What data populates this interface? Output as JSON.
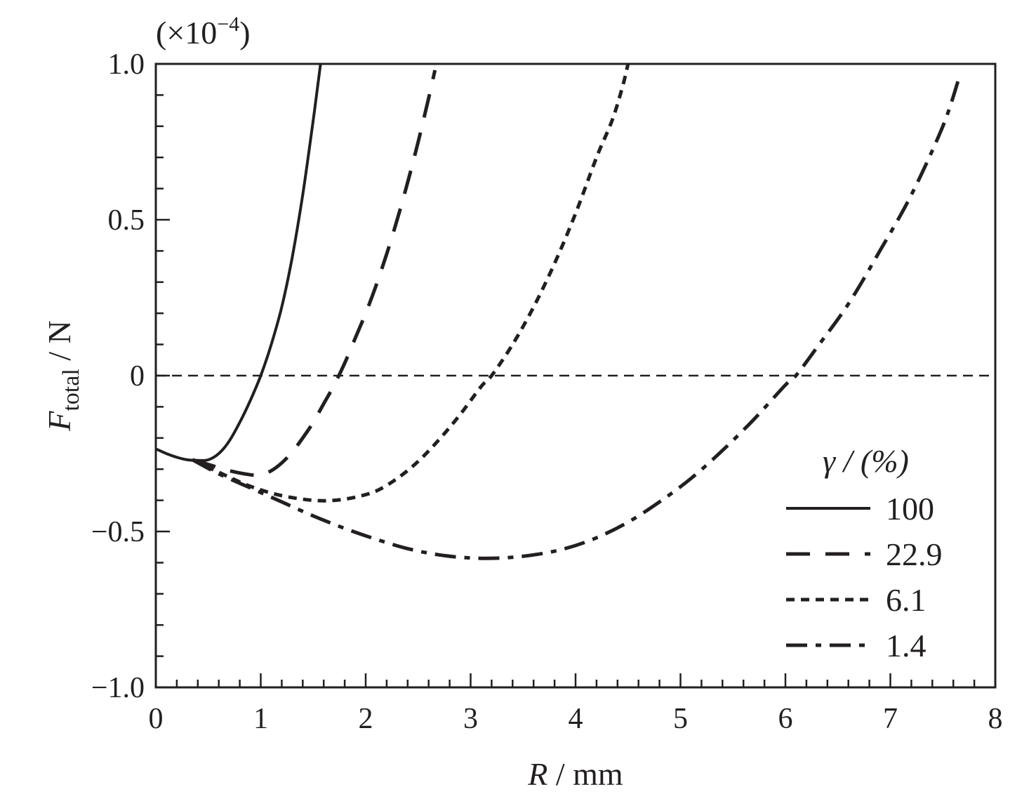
{
  "chart_data": {
    "type": "line",
    "scale_label": {
      "prefix": "(×10",
      "exponent": "−4",
      "suffix": ")"
    },
    "xlabel": {
      "symbol": "R",
      "unit": " / mm"
    },
    "ylabel": {
      "symbol": "F",
      "subscript": "total",
      "unit": " / N"
    },
    "xlim": [
      0,
      8
    ],
    "ylim": [
      -1.0,
      1.0
    ],
    "xticks": [
      "0",
      "1",
      "2",
      "3",
      "4",
      "5",
      "6",
      "7",
      "8"
    ],
    "yticks": [
      "−1.0",
      "−0.5",
      "0",
      "0.5",
      "1.0"
    ],
    "ytick_values": [
      -1.0,
      -0.5,
      0,
      0.5,
      1.0
    ],
    "reference_line_y": 0,
    "legend": {
      "title": "γ / (%)",
      "placement": "bottom-right"
    },
    "series": [
      {
        "name": "100",
        "style": "solid",
        "points": [
          [
            0,
            -0.235
          ],
          [
            0.1,
            -0.25
          ],
          [
            0.2,
            -0.262
          ],
          [
            0.3,
            -0.27
          ],
          [
            0.4,
            -0.272
          ],
          [
            0.5,
            -0.27
          ],
          [
            0.6,
            -0.25
          ],
          [
            0.7,
            -0.21
          ],
          [
            0.8,
            -0.15
          ],
          [
            0.9,
            -0.08
          ],
          [
            1.0,
            0.0
          ],
          [
            1.1,
            0.1
          ],
          [
            1.2,
            0.22
          ],
          [
            1.3,
            0.38
          ],
          [
            1.4,
            0.58
          ],
          [
            1.5,
            0.82
          ],
          [
            1.57,
            1.0
          ]
        ]
      },
      {
        "name": "22.9",
        "style": "dashed",
        "points": [
          [
            0.35,
            -0.27
          ],
          [
            0.5,
            -0.285
          ],
          [
            0.7,
            -0.305
          ],
          [
            0.9,
            -0.318
          ],
          [
            1.0,
            -0.318
          ],
          [
            1.1,
            -0.305
          ],
          [
            1.2,
            -0.28
          ],
          [
            1.3,
            -0.245
          ],
          [
            1.4,
            -0.2
          ],
          [
            1.5,
            -0.15
          ],
          [
            1.6,
            -0.09
          ],
          [
            1.7,
            -0.03
          ],
          [
            1.8,
            0.04
          ],
          [
            1.9,
            0.12
          ],
          [
            2.0,
            0.2
          ],
          [
            2.1,
            0.29
          ],
          [
            2.2,
            0.39
          ],
          [
            2.3,
            0.5
          ],
          [
            2.4,
            0.62
          ],
          [
            2.5,
            0.75
          ],
          [
            2.6,
            0.89
          ],
          [
            2.66,
            0.98
          ]
        ]
      },
      {
        "name": "6.1",
        "style": "dotted",
        "points": [
          [
            0.35,
            -0.27
          ],
          [
            0.6,
            -0.31
          ],
          [
            0.9,
            -0.355
          ],
          [
            1.2,
            -0.385
          ],
          [
            1.5,
            -0.4
          ],
          [
            1.7,
            -0.4
          ],
          [
            1.9,
            -0.39
          ],
          [
            2.1,
            -0.37
          ],
          [
            2.3,
            -0.33
          ],
          [
            2.5,
            -0.275
          ],
          [
            2.7,
            -0.205
          ],
          [
            2.9,
            -0.125
          ],
          [
            3.1,
            -0.035
          ],
          [
            3.2,
            0.0
          ],
          [
            3.4,
            0.1
          ],
          [
            3.6,
            0.22
          ],
          [
            3.8,
            0.36
          ],
          [
            4.0,
            0.52
          ],
          [
            4.2,
            0.7
          ],
          [
            4.35,
            0.82
          ],
          [
            4.45,
            0.93
          ],
          [
            4.5,
            1.0
          ]
        ]
      },
      {
        "name": "1.4",
        "style": "dashdot",
        "points": [
          [
            0.35,
            -0.27
          ],
          [
            0.6,
            -0.315
          ],
          [
            0.9,
            -0.36
          ],
          [
            1.2,
            -0.405
          ],
          [
            1.5,
            -0.45
          ],
          [
            1.8,
            -0.49
          ],
          [
            2.1,
            -0.525
          ],
          [
            2.4,
            -0.555
          ],
          [
            2.7,
            -0.575
          ],
          [
            3.0,
            -0.585
          ],
          [
            3.3,
            -0.585
          ],
          [
            3.6,
            -0.575
          ],
          [
            3.9,
            -0.555
          ],
          [
            4.2,
            -0.52
          ],
          [
            4.5,
            -0.47
          ],
          [
            4.8,
            -0.405
          ],
          [
            5.1,
            -0.33
          ],
          [
            5.4,
            -0.24
          ],
          [
            5.7,
            -0.14
          ],
          [
            6.0,
            -0.03
          ],
          [
            6.1,
            0.0
          ],
          [
            6.3,
            0.09
          ],
          [
            6.6,
            0.23
          ],
          [
            6.9,
            0.4
          ],
          [
            7.2,
            0.58
          ],
          [
            7.5,
            0.8
          ],
          [
            7.65,
            0.95
          ]
        ]
      }
    ]
  }
}
